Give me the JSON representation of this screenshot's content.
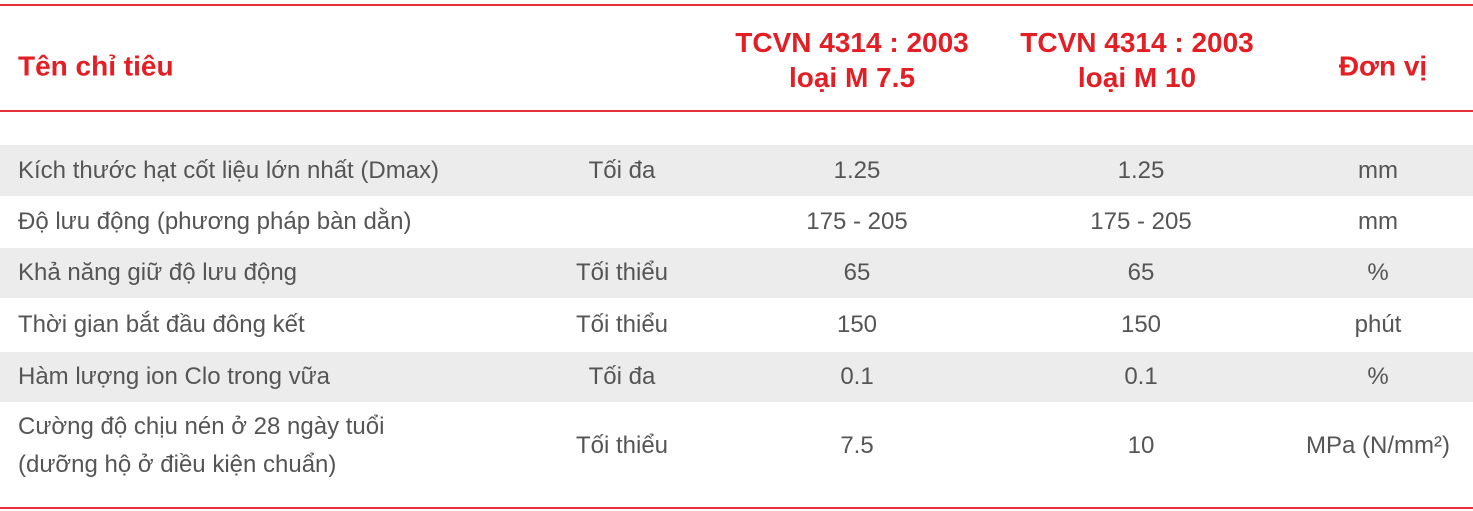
{
  "table": {
    "header": [
      [
        "Tên chỉ tiêu"
      ],
      [],
      [
        "TCVN 4314 : 2003",
        "loại M 7.5"
      ],
      [
        "TCVN 4314 : 2003",
        "loại M 10"
      ],
      [
        "Đơn vị"
      ]
    ],
    "rows": [
      [
        [
          "Kích thước hạt cốt liệu lớn nhất (Dmax)"
        ],
        [
          "Tối đa"
        ],
        [
          "1.25"
        ],
        [
          "1.25"
        ],
        [
          "mm"
        ]
      ],
      [
        [
          "Độ lưu động (phương pháp bàn dằn)"
        ],
        [],
        [
          "175 - 205"
        ],
        [
          "175 - 205"
        ],
        [
          "mm"
        ]
      ],
      [
        [
          "Khả năng giữ độ lưu động"
        ],
        [
          "Tối thiểu"
        ],
        [
          "65"
        ],
        [
          "65"
        ],
        [
          "%"
        ]
      ],
      [
        [
          "Thời gian bắt đầu đông kết"
        ],
        [
          "Tối thiểu"
        ],
        [
          "150"
        ],
        [
          "150"
        ],
        [
          "phút"
        ]
      ],
      [
        [
          "Hàm lượng ion Clo trong vữa"
        ],
        [
          "Tối đa"
        ],
        [
          "0.1"
        ],
        [
          "0.1"
        ],
        [
          "%"
        ]
      ],
      [
        [
          "Cường độ chịu nén ở 28 ngày tuổi",
          "(dưỡng hộ ở điều kiện chuẩn)"
        ],
        [
          "Tối thiểu"
        ],
        [
          "7.5"
        ],
        [
          "10"
        ],
        [
          "MPa (N/mm²)"
        ]
      ]
    ]
  }
}
